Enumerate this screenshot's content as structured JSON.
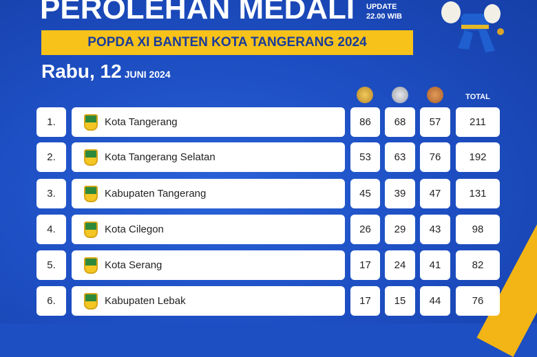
{
  "header": {
    "title": "PEROLEHAN MEDALI",
    "update_line1": "UPDATE",
    "update_line2": "22.00 WIB",
    "event": "POPDA XI BANTEN KOTA TANGERANG 2024",
    "day": "Rabu, 12",
    "month_year": "JUNI 2024"
  },
  "columns": {
    "gold": "gold-medal-icon",
    "silver": "silver-medal-icon",
    "bronze": "bronze-medal-icon",
    "total": "TOTAL"
  },
  "colors": {
    "background": "#1d4ec2",
    "accent": "#f7c21a",
    "gold": "#d9a42a",
    "silver": "#b8bcc4",
    "bronze": "#c57a3c"
  },
  "rows": [
    {
      "rank": "1.",
      "name": "Kota Tangerang",
      "gold": "86",
      "silver": "68",
      "bronze": "57",
      "total": "211"
    },
    {
      "rank": "2.",
      "name": "Kota Tangerang Selatan",
      "gold": "53",
      "silver": "63",
      "bronze": "76",
      "total": "192"
    },
    {
      "rank": "3.",
      "name": "Kabupaten Tangerang",
      "gold": "45",
      "silver": "39",
      "bronze": "47",
      "total": "131"
    },
    {
      "rank": "4.",
      "name": "Kota Cilegon",
      "gold": "26",
      "silver": "29",
      "bronze": "43",
      "total": "98"
    },
    {
      "rank": "5.",
      "name": "Kota Serang",
      "gold": "17",
      "silver": "24",
      "bronze": "41",
      "total": "82"
    },
    {
      "rank": "6.",
      "name": "Kabupaten Lebak",
      "gold": "17",
      "silver": "15",
      "bronze": "44",
      "total": "76"
    }
  ]
}
